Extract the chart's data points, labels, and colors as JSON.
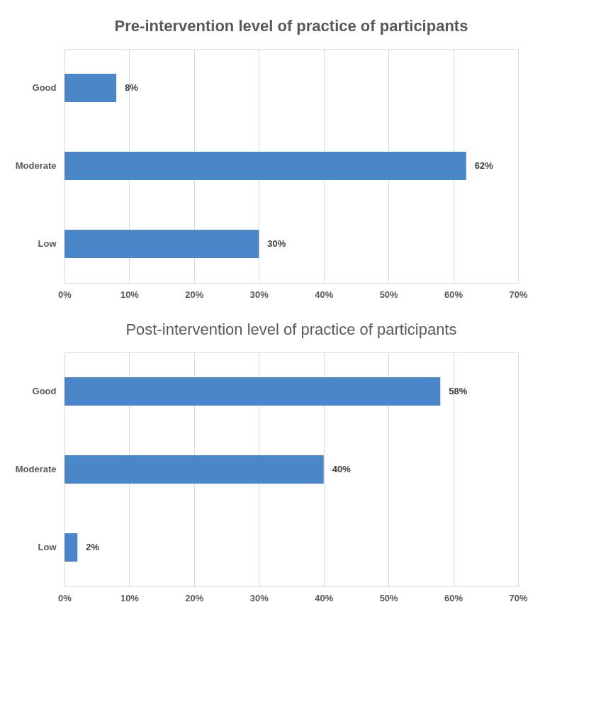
{
  "chart_data": [
    {
      "type": "bar",
      "orientation": "horizontal",
      "title": "Pre-intervention level of practice of participants",
      "categories": [
        "Good",
        "Moderate",
        "Low"
      ],
      "values": [
        8,
        62,
        30
      ],
      "color": "#4a86c8",
      "value_labels": [
        "8%",
        "62%",
        "30%"
      ],
      "xlim": [
        0,
        70
      ],
      "xticks": [
        {
          "value": 0,
          "label": "0%"
        },
        {
          "value": 10,
          "label": "10%"
        },
        {
          "value": 20,
          "label": "20%"
        },
        {
          "value": 30,
          "label": "30%"
        },
        {
          "value": 40,
          "label": "40%"
        },
        {
          "value": 50,
          "label": "50%"
        },
        {
          "value": 60,
          "label": "60%"
        },
        {
          "value": 70,
          "label": "70%"
        }
      ],
      "grid": "x"
    },
    {
      "type": "bar",
      "orientation": "horizontal",
      "title": "Post-intervention level of practice of participants",
      "categories": [
        "Good",
        "Moderate",
        "Low"
      ],
      "values": [
        58,
        40,
        2
      ],
      "color": "#4a86c8",
      "value_labels": [
        "58%",
        "40%",
        "2%"
      ],
      "xlim": [
        0,
        70
      ],
      "xticks": [
        {
          "value": 0,
          "label": "0%"
        },
        {
          "value": 10,
          "label": "10%"
        },
        {
          "value": 20,
          "label": "20%"
        },
        {
          "value": 30,
          "label": "30%"
        },
        {
          "value": 40,
          "label": "40%"
        },
        {
          "value": 50,
          "label": "50%"
        },
        {
          "value": 60,
          "label": "60%"
        },
        {
          "value": 70,
          "label": "70%"
        }
      ],
      "grid": "x"
    }
  ]
}
